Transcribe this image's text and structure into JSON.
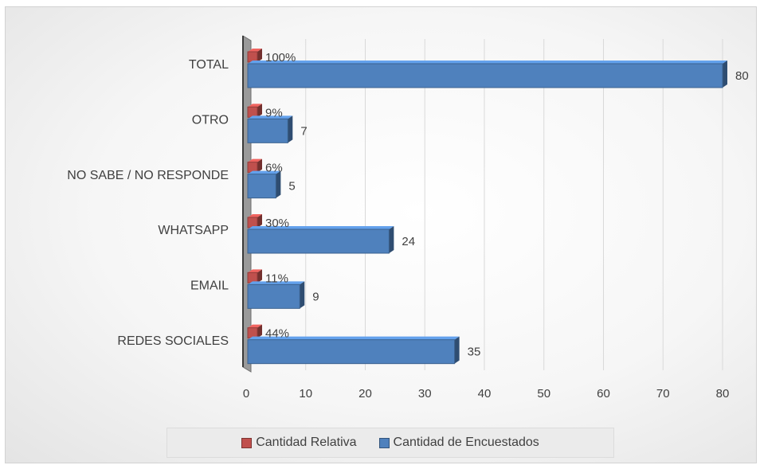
{
  "chart_data": {
    "type": "bar",
    "orientation": "horizontal",
    "categories": [
      "TOTAL",
      "OTRO",
      "NO SABE / NO RESPONDE",
      "WHATSAPP",
      "EMAIL",
      "REDES SOCIALES"
    ],
    "series": [
      {
        "name": "Cantidad Relativa",
        "color": "#c0504d",
        "values": [
          1.0,
          0.09,
          0.06,
          0.3,
          0.11,
          0.44
        ],
        "labels": [
          "100%",
          "9%",
          "6%",
          "30%",
          "11%",
          "44%"
        ]
      },
      {
        "name": "Cantidad de Encuestados",
        "color": "#4f81bd",
        "values": [
          80,
          7,
          5,
          24,
          9,
          35
        ],
        "labels": [
          "80",
          "7",
          "5",
          "24",
          "9",
          "35"
        ]
      }
    ],
    "xlim": [
      0,
      80
    ],
    "xticks": [
      "0",
      "10",
      "20",
      "30",
      "40",
      "50",
      "60",
      "70",
      "80"
    ],
    "grid": true,
    "legend_position": "bottom",
    "style": "3d-bars"
  }
}
